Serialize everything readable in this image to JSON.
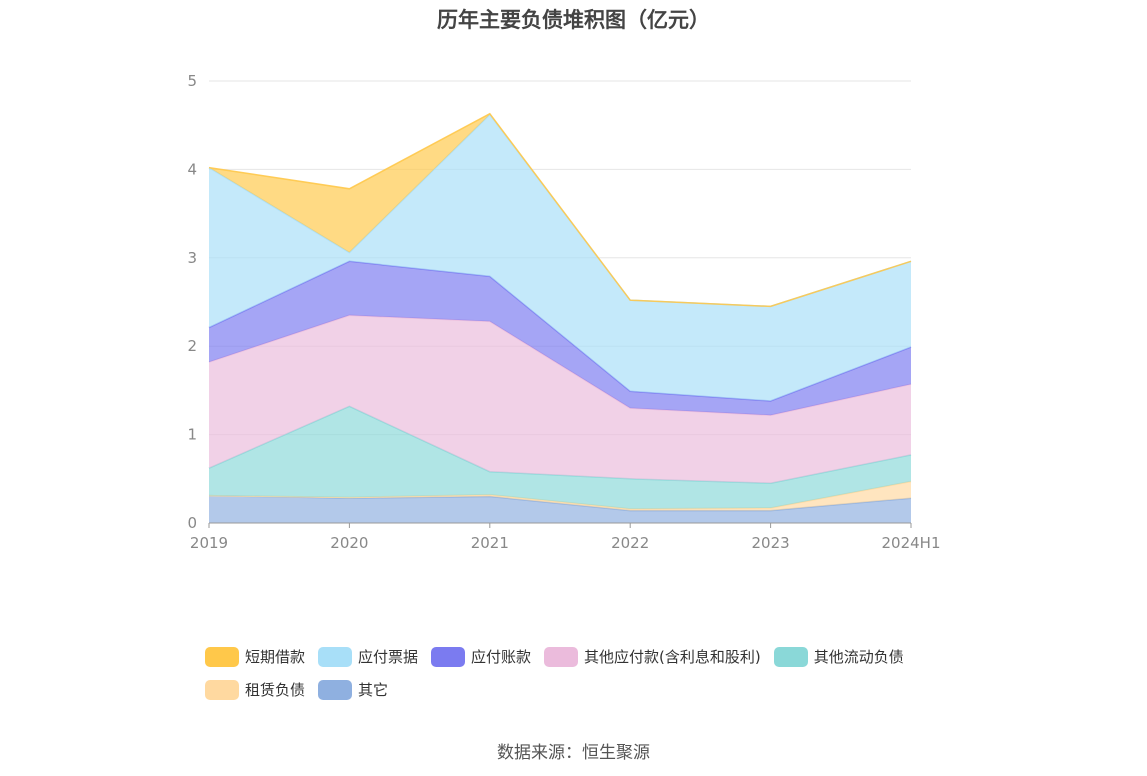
{
  "chart_data": {
    "type": "area",
    "stacked": true,
    "title": "历年主要负债堆积图（亿元）",
    "categories": [
      "2019",
      "2020",
      "2021",
      "2022",
      "2023",
      "2024H1"
    ],
    "ylim": [
      0,
      5
    ],
    "yticks": [
      "0",
      "1",
      "2",
      "3",
      "4",
      "5"
    ],
    "grid": true,
    "legend_position": "bottom",
    "series": [
      {
        "name": "其它",
        "color": "#8fb0e0",
        "values": [
          0.31,
          0.28,
          0.3,
          0.14,
          0.14,
          0.28
        ]
      },
      {
        "name": "租赁负债",
        "color": "#ffd9a0",
        "values": [
          0.0,
          0.01,
          0.02,
          0.02,
          0.03,
          0.19
        ]
      },
      {
        "name": "其他流动负债",
        "color": "#8ad8d8",
        "values": [
          0.31,
          1.03,
          0.26,
          0.34,
          0.28,
          0.3
        ]
      },
      {
        "name": "其他应付款(含利息和股利)",
        "color": "#ebbbdc",
        "values": [
          1.2,
          1.03,
          1.7,
          0.8,
          0.77,
          0.8
        ]
      },
      {
        "name": "应付账款",
        "color": "#7b7bf0",
        "values": [
          0.39,
          0.61,
          0.51,
          0.19,
          0.16,
          0.42
        ]
      },
      {
        "name": "应付票据",
        "color": "#a8dff8",
        "values": [
          1.81,
          0.1,
          1.83,
          1.03,
          1.07,
          0.97
        ]
      },
      {
        "name": "短期借款",
        "color": "#ffc84a",
        "values": [
          0.0,
          0.72,
          0.01,
          0.0,
          0.0,
          0.0
        ]
      }
    ],
    "legend_order": [
      "短期借款",
      "应付票据",
      "应付账款",
      "其他应付款(含利息和股利)",
      "其他流动负债",
      "租赁负债",
      "其它"
    ]
  },
  "source": "数据来源：恒生聚源"
}
